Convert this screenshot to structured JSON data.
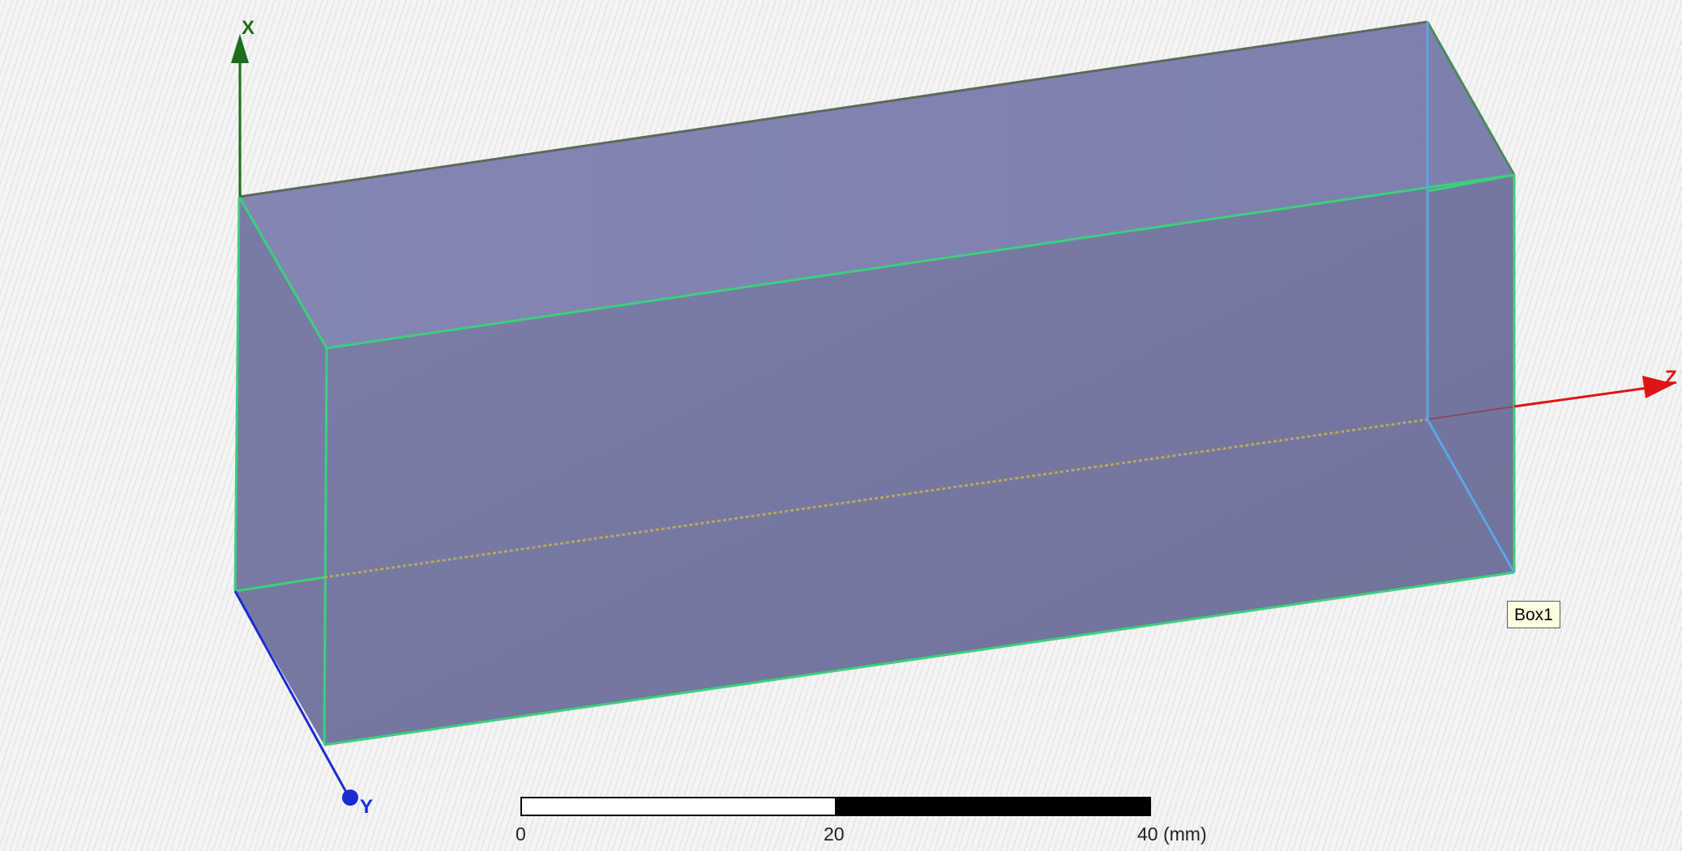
{
  "viewport": {
    "background": "#f4f4f4",
    "hatch_color": "#cfcfcf"
  },
  "axes": {
    "x": {
      "label": "X",
      "color": "#1a6e1a"
    },
    "y": {
      "label": "Y",
      "color": "#1a2bd6"
    },
    "z": {
      "label": "Z",
      "color": "#e01414"
    }
  },
  "object": {
    "name": "Box1",
    "face_color": "#7b7fae",
    "edge_color": "#3cd07a",
    "selected_edge_color": "#5aa6e8"
  },
  "scale_bar": {
    "ticks": [
      "0",
      "20",
      "40 (mm)"
    ],
    "segments": [
      {
        "fill": "#ffffff"
      },
      {
        "fill": "#000000"
      }
    ]
  }
}
